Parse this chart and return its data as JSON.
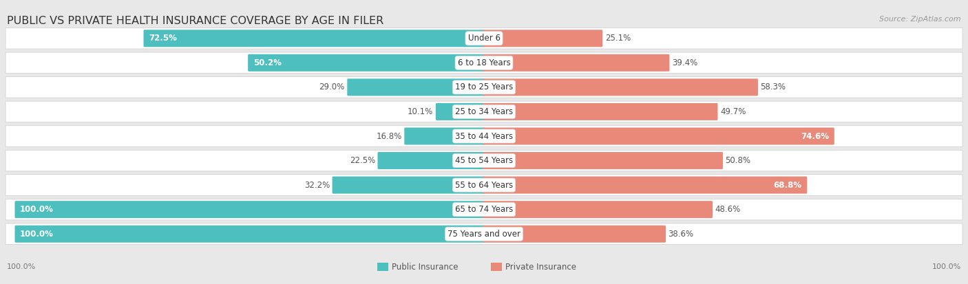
{
  "title": "PUBLIC VS PRIVATE HEALTH INSURANCE COVERAGE BY AGE IN FILER",
  "source": "Source: ZipAtlas.com",
  "categories": [
    "Under 6",
    "6 to 18 Years",
    "19 to 25 Years",
    "25 to 34 Years",
    "35 to 44 Years",
    "45 to 54 Years",
    "55 to 64 Years",
    "65 to 74 Years",
    "75 Years and over"
  ],
  "public_values": [
    72.5,
    50.2,
    29.0,
    10.1,
    16.8,
    22.5,
    32.2,
    100.0,
    100.0
  ],
  "private_values": [
    25.1,
    39.4,
    58.3,
    49.7,
    74.6,
    50.8,
    68.8,
    48.6,
    38.6
  ],
  "public_color": "#4DBFBF",
  "private_color": "#E8897A",
  "bg_color": "#e8e8e8",
  "row_bg": "#f5f5f5",
  "max_value": 100.0,
  "title_fontsize": 11.5,
  "label_fontsize": 8.5,
  "tick_fontsize": 8,
  "legend_fontsize": 8.5,
  "source_fontsize": 8
}
